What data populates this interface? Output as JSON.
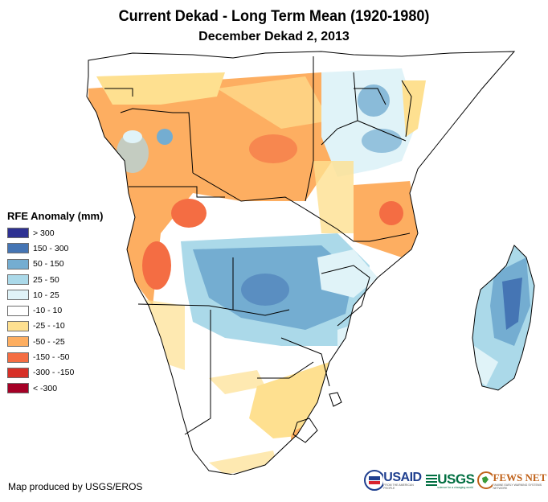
{
  "title": "Current Dekad - Long Term Mean (1920-1980)",
  "subtitle": "December Dekad 2, 2013",
  "legend": {
    "title": "RFE Anomaly (mm)",
    "items": [
      {
        "label": "> 300",
        "color": "#2e3192"
      },
      {
        "label": "150 - 300",
        "color": "#4575b4"
      },
      {
        "label": "50 - 150",
        "color": "#74add1"
      },
      {
        "label": "25 - 50",
        "color": "#abd9e9"
      },
      {
        "label": "10 - 25",
        "color": "#e0f3f8"
      },
      {
        "label": "-10 - 10",
        "color": "#ffffff"
      },
      {
        "label": "-25 - -10",
        "color": "#fee090"
      },
      {
        "label": "-50 - -25",
        "color": "#fdae61"
      },
      {
        "label": "-150 - -50",
        "color": "#f46d43"
      },
      {
        "label": "-300 - -150",
        "color": "#d73027"
      },
      {
        "label": "< -300",
        "color": "#a50026"
      }
    ]
  },
  "credit": "Map produced by USGS/EROS",
  "logos": {
    "usaid": "USAID",
    "usaid_tagline": "FROM THE AMERICAN PEOPLE",
    "usgs": "USGS",
    "usgs_tagline": "science for a changing world",
    "fews": "FEWS NET",
    "fews_tagline": "FAMINE EARLY WARNING SYSTEMS NETWORK"
  }
}
